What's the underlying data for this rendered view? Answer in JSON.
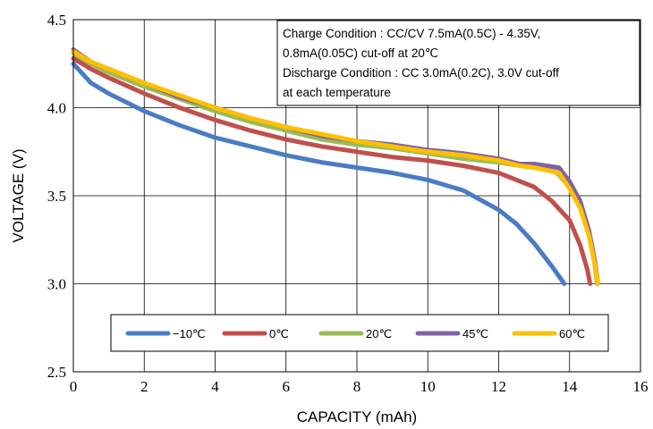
{
  "chart_data": {
    "type": "line",
    "xlabel": "CAPACITY (mAh)",
    "ylabel": "VOLTAGE (V)",
    "xlim": [
      0,
      16
    ],
    "ylim": [
      2.5,
      4.5
    ],
    "x_ticks": [
      "0",
      "2",
      "4",
      "6",
      "8",
      "10",
      "12",
      "14",
      "16"
    ],
    "y_ticks": [
      "2.5",
      "3.0",
      "3.5",
      "4.0",
      "4.5"
    ],
    "grid": true,
    "legend_position": "bottom-inside",
    "annotation": [
      "Charge Condition : CC/CV 7.5mA(0.5C) - 4.35V,",
      "0.8mA(0.05C) cut-off at 20℃",
      "Discharge Condition : CC 3.0mA(0.2C), 3.0V cut-off",
      "at each temperature"
    ],
    "series": [
      {
        "name": "−10℃",
        "color": "#4a7cc4",
        "points": [
          [
            0,
            4.25
          ],
          [
            0.5,
            4.14
          ],
          [
            1,
            4.08
          ],
          [
            2,
            3.98
          ],
          [
            3,
            3.9
          ],
          [
            4,
            3.83
          ],
          [
            5,
            3.78
          ],
          [
            6,
            3.73
          ],
          [
            7,
            3.69
          ],
          [
            8,
            3.66
          ],
          [
            9,
            3.63
          ],
          [
            10,
            3.59
          ],
          [
            11,
            3.53
          ],
          [
            12,
            3.42
          ],
          [
            12.5,
            3.34
          ],
          [
            13,
            3.23
          ],
          [
            13.5,
            3.1
          ],
          [
            13.85,
            3.0
          ]
        ]
      },
      {
        "name": "0℃",
        "color": "#c0504d",
        "points": [
          [
            0,
            4.28
          ],
          [
            0.5,
            4.22
          ],
          [
            1,
            4.17
          ],
          [
            2,
            4.08
          ],
          [
            3,
            4.0
          ],
          [
            4,
            3.93
          ],
          [
            5,
            3.87
          ],
          [
            6,
            3.82
          ],
          [
            7,
            3.78
          ],
          [
            8,
            3.75
          ],
          [
            9,
            3.72
          ],
          [
            10,
            3.7
          ],
          [
            11,
            3.67
          ],
          [
            12,
            3.63
          ],
          [
            13,
            3.55
          ],
          [
            13.5,
            3.47
          ],
          [
            14,
            3.36
          ],
          [
            14.3,
            3.22
          ],
          [
            14.5,
            3.08
          ],
          [
            14.58,
            3.0
          ]
        ]
      },
      {
        "name": "20℃",
        "color": "#9bbb59",
        "points": [
          [
            0,
            4.31
          ],
          [
            0.5,
            4.25
          ],
          [
            1,
            4.2
          ],
          [
            2,
            4.12
          ],
          [
            3,
            4.05
          ],
          [
            4,
            3.98
          ],
          [
            5,
            3.92
          ],
          [
            6,
            3.87
          ],
          [
            7,
            3.82
          ],
          [
            8,
            3.79
          ],
          [
            9,
            3.77
          ],
          [
            10,
            3.74
          ],
          [
            11,
            3.71
          ],
          [
            12,
            3.69
          ],
          [
            12.6,
            3.67
          ],
          [
            13,
            3.66
          ],
          [
            13.6,
            3.64
          ],
          [
            14,
            3.55
          ],
          [
            14.3,
            3.44
          ],
          [
            14.55,
            3.28
          ],
          [
            14.7,
            3.12
          ],
          [
            14.78,
            3.0
          ]
        ]
      },
      {
        "name": "45℃",
        "color": "#8064a2",
        "points": [
          [
            0,
            4.33
          ],
          [
            0.5,
            4.26
          ],
          [
            1,
            4.22
          ],
          [
            2,
            4.14
          ],
          [
            3,
            4.06
          ],
          [
            4,
            4.0
          ],
          [
            5,
            3.94
          ],
          [
            6,
            3.89
          ],
          [
            7,
            3.84
          ],
          [
            8,
            3.81
          ],
          [
            9,
            3.79
          ],
          [
            10,
            3.76
          ],
          [
            11,
            3.74
          ],
          [
            12,
            3.71
          ],
          [
            12.6,
            3.68
          ],
          [
            13,
            3.68
          ],
          [
            13.7,
            3.66
          ],
          [
            14,
            3.58
          ],
          [
            14.3,
            3.47
          ],
          [
            14.55,
            3.3
          ],
          [
            14.72,
            3.12
          ],
          [
            14.8,
            3.0
          ]
        ]
      },
      {
        "name": "60℃",
        "color": "#ffc000",
        "points": [
          [
            0,
            4.32
          ],
          [
            0.5,
            4.26
          ],
          [
            1,
            4.22
          ],
          [
            2,
            4.14
          ],
          [
            3,
            4.07
          ],
          [
            4,
            4.0
          ],
          [
            5,
            3.94
          ],
          [
            6,
            3.89
          ],
          [
            7,
            3.85
          ],
          [
            8,
            3.81
          ],
          [
            9,
            3.78
          ],
          [
            10,
            3.75
          ],
          [
            11,
            3.73
          ],
          [
            12,
            3.7
          ],
          [
            12.6,
            3.67
          ],
          [
            13,
            3.66
          ],
          [
            13.7,
            3.63
          ],
          [
            14,
            3.54
          ],
          [
            14.3,
            3.43
          ],
          [
            14.55,
            3.27
          ],
          [
            14.72,
            3.1
          ],
          [
            14.8,
            3.0
          ]
        ]
      }
    ]
  }
}
